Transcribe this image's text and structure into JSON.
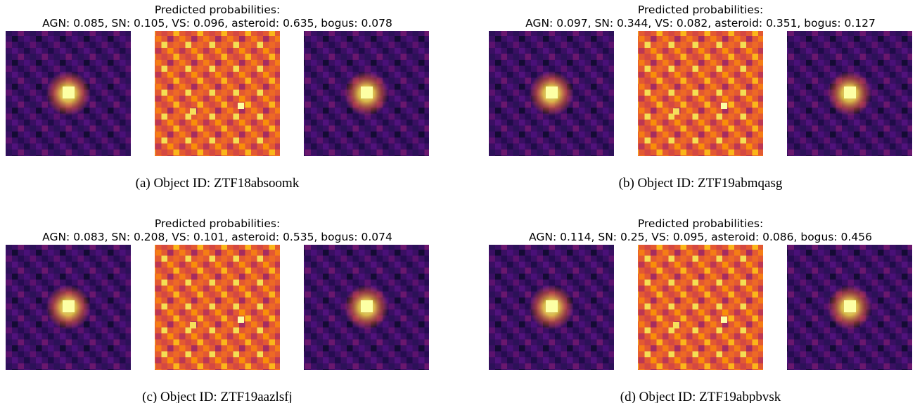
{
  "panels": [
    {
      "title_lines": [
        "Predicted probabilities:",
        "AGN: 0.085, SN: 0.105, VS: 0.096, asteroid: 0.635, bogus: 0.078"
      ],
      "caption": "(a) Object ID: ZTF18absoomk"
    },
    {
      "title_lines": [
        "Predicted probabilities:",
        "AGN: 0.097, SN: 0.344, VS: 0.082, asteroid: 0.351, bogus: 0.127"
      ],
      "caption": "(b) Object ID: ZTF19abmqasg"
    },
    {
      "title_lines": [
        "Predicted probabilities:",
        "AGN: 0.083, SN: 0.208, VS: 0.101, asteroid: 0.535, bogus: 0.074"
      ],
      "caption": "(c) Object ID: ZTF19aazlsfj"
    },
    {
      "title_lines": [
        "Predicted probabilities:",
        "AGN: 0.114, SN: 0.25, VS: 0.095, asteroid: 0.086, bogus: 0.456"
      ],
      "caption": "(d) Object ID: ZTF19abpbvsk"
    }
  ]
}
